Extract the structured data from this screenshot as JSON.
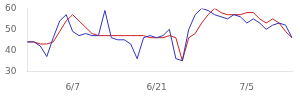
{
  "chart_data": {
    "type": "line",
    "categories": [
      null,
      null,
      null,
      null,
      null,
      null,
      null,
      "6/7",
      null,
      null,
      null,
      null,
      null,
      null,
      null,
      null,
      null,
      null,
      null,
      null,
      "6/21",
      null,
      null,
      null,
      null,
      null,
      null,
      null,
      null,
      null,
      null,
      null,
      null,
      null,
      "7/5",
      null,
      null,
      null,
      null,
      null,
      null,
      null
    ],
    "series": [
      {
        "color": "#3333bb",
        "values": [
          44,
          44,
          42,
          37,
          46,
          54,
          57,
          49,
          47,
          48,
          47,
          47,
          59,
          46,
          45,
          45,
          43,
          36,
          46,
          47,
          46,
          47,
          50,
          36,
          35,
          50,
          57,
          60,
          59,
          57,
          56,
          55,
          57,
          56,
          53,
          55,
          53,
          50,
          52,
          53,
          52,
          46
        ]
      },
      {
        "color": "#cc2222",
        "values": [
          44,
          44,
          43,
          43,
          44,
          49,
          54,
          57,
          54,
          51,
          48,
          47,
          47,
          47,
          47,
          47,
          47,
          47,
          47,
          46,
          46,
          46,
          47,
          46,
          35,
          46,
          48,
          53,
          57,
          60,
          58,
          57,
          57,
          57,
          58,
          58,
          55,
          53,
          55,
          53,
          49,
          46
        ]
      }
    ],
    "ylim": [
      30,
      60
    ],
    "yticks": [
      30,
      40,
      50,
      60
    ],
    "grid": false
  }
}
